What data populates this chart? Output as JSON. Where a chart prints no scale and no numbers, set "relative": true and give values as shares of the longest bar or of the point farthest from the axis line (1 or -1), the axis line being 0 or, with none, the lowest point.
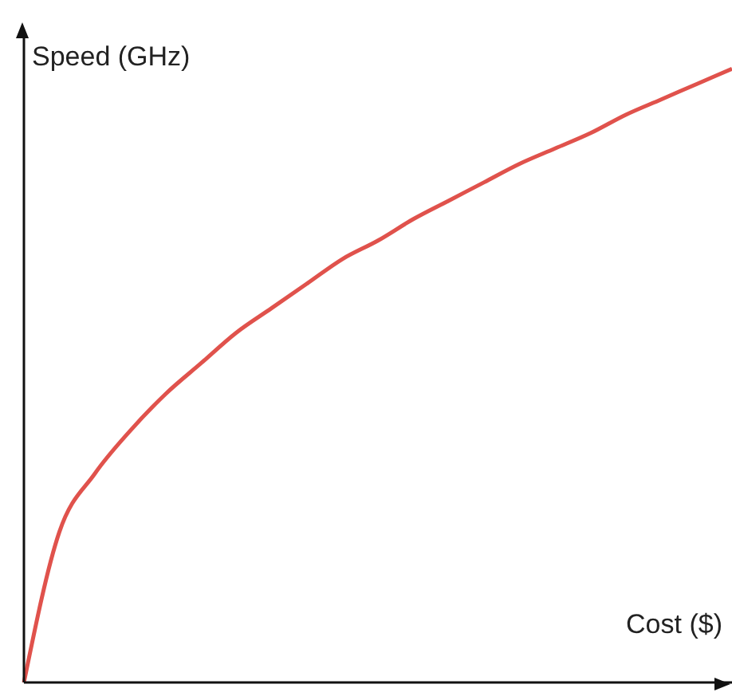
{
  "chart_data": {
    "type": "line",
    "relative": true,
    "xlabel": "Cost ($)",
    "ylabel": "Speed (GHz)",
    "categories": [
      null,
      null,
      null,
      null,
      null,
      null,
      null,
      null,
      null,
      null,
      null,
      null,
      null,
      null,
      null,
      null,
      null,
      null,
      null,
      null,
      null
    ],
    "series": [
      {
        "color": "#e0524c",
        "values": [
          0,
          0.245,
          0.34,
          0.41,
          0.47,
          0.52,
          0.57,
          0.61,
          0.65,
          0.69,
          0.72,
          0.755,
          0.785,
          0.815,
          0.845,
          0.87,
          0.895,
          0.925,
          0.95,
          0.975,
          1
        ]
      }
    ],
    "marker": "none",
    "line_style": "solid",
    "grid": false,
    "legend": false
  }
}
